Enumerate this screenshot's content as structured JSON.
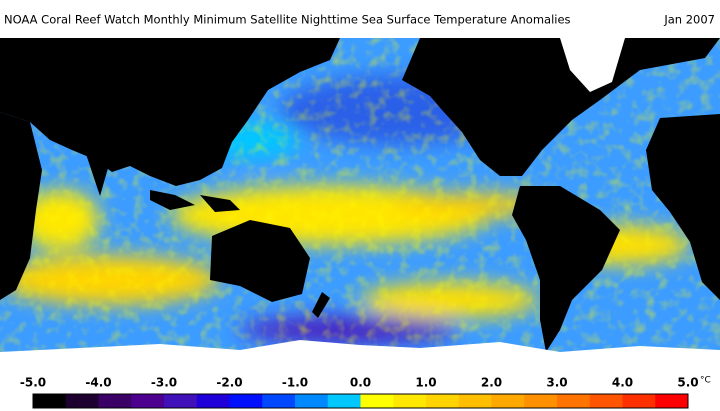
{
  "header": {
    "title": "NOAA Coral Reef Watch Monthly Minimum Satellite Nighttime Sea Surface Temperature Anomalies",
    "date": "Jan 2007"
  },
  "colorbar": {
    "range": [
      -5,
      5
    ],
    "unit": "°C",
    "ticks": [
      {
        "value": -5,
        "label": "-5.0"
      },
      {
        "value": -4,
        "label": "-4.0"
      },
      {
        "value": -3,
        "label": "-3.0"
      },
      {
        "value": -2,
        "label": "-2.0"
      },
      {
        "value": -1,
        "label": "-1.0"
      },
      {
        "value": 0,
        "label": "0.0"
      },
      {
        "value": 1,
        "label": "1.0"
      },
      {
        "value": 2,
        "label": "2.0"
      },
      {
        "value": 3,
        "label": "3.0"
      },
      {
        "value": 4,
        "label": "4.0"
      },
      {
        "value": 5,
        "label": "5.0"
      }
    ],
    "colors": [
      "#000000",
      "#1e0030",
      "#3a0066",
      "#4d0090",
      "#4010b8",
      "#2000d8",
      "#0010ff",
      "#0048ff",
      "#0088ff",
      "#00c8ff",
      "#ffff00",
      "#ffe800",
      "#ffd400",
      "#ffbe00",
      "#ffa800",
      "#ff9000",
      "#ff7400",
      "#ff5400",
      "#ff3000",
      "#ff0000"
    ]
  }
}
